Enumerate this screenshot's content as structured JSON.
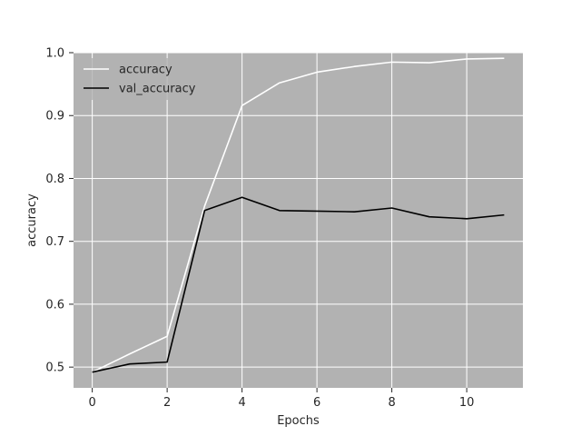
{
  "chart_data": {
    "type": "line",
    "xlabel": "Epochs",
    "ylabel": "accuracy",
    "xlim": [
      -0.5,
      11.5
    ],
    "ylim": [
      0.467,
      1.0
    ],
    "xticks": [
      0,
      2,
      4,
      6,
      8,
      10
    ],
    "yticks": [
      0.5,
      0.6,
      0.7,
      0.8,
      0.9,
      1.0
    ],
    "xtick_labels": [
      "0",
      "2",
      "4",
      "6",
      "8",
      "10"
    ],
    "ytick_labels": [
      "0.5",
      "0.6",
      "0.7",
      "0.8",
      "0.9",
      "1.0"
    ],
    "grid": true,
    "legend_position": "upper-left",
    "x": [
      0,
      1,
      2,
      3,
      4,
      5,
      6,
      7,
      8,
      9,
      10,
      11
    ],
    "series": [
      {
        "name": "accuracy",
        "color": "#ffffff",
        "values": [
          0.492,
          0.521,
          0.549,
          0.756,
          0.916,
          0.952,
          0.969,
          0.978,
          0.985,
          0.984,
          0.99,
          0.991
        ]
      },
      {
        "name": "val_accuracy",
        "color": "#000000",
        "values": [
          0.492,
          0.505,
          0.508,
          0.749,
          0.77,
          0.749,
          0.748,
          0.747,
          0.753,
          0.739,
          0.736,
          0.742
        ]
      }
    ],
    "plot_background": "#b2b2b2",
    "grid_color": "#ffffff"
  }
}
